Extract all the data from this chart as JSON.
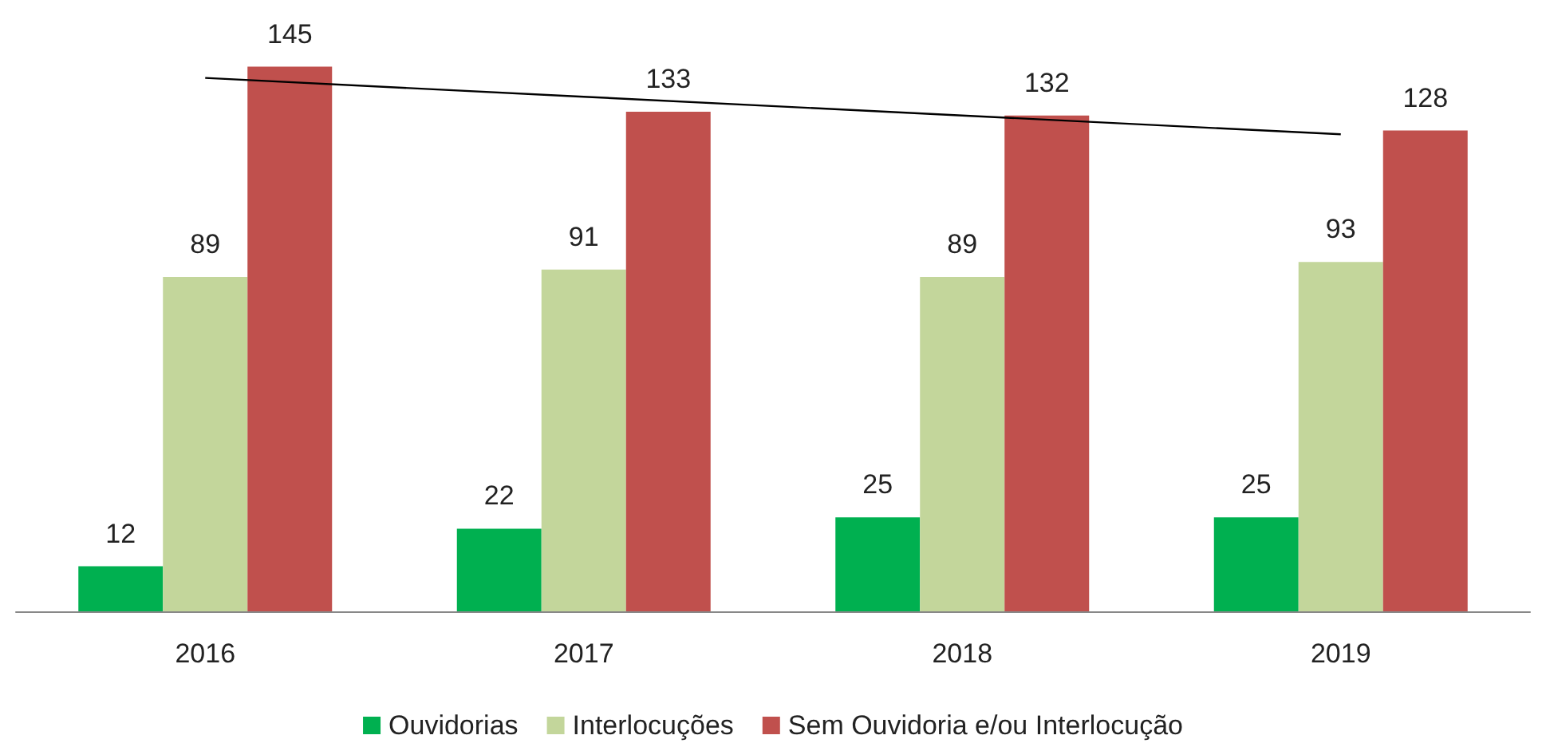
{
  "chart_data": {
    "type": "bar",
    "categories": [
      "2016",
      "2017",
      "2018",
      "2019"
    ],
    "series": [
      {
        "name": "Ouvidorias",
        "color": "#00b050",
        "values": [
          12,
          22,
          25,
          25
        ],
        "value_labels": [
          "12",
          "22",
          "25",
          "25"
        ]
      },
      {
        "name": "Interlocuções",
        "color": "#c3d69b",
        "values": [
          89,
          91,
          89,
          93
        ],
        "value_labels": [
          "89",
          "91",
          "89",
          "93"
        ]
      },
      {
        "name": "Sem Ouvidoria e/ou Interlocução",
        "color": "#c0504d",
        "values": [
          145,
          133,
          132,
          128
        ],
        "value_labels": [
          "145",
          "133",
          "132",
          "128"
        ]
      },
      {
        "type": "line",
        "color": "#000000",
        "values": [
          142,
          137,
          132,
          127
        ],
        "marker": "none"
      }
    ],
    "legend": "bottom",
    "grid": false
  }
}
